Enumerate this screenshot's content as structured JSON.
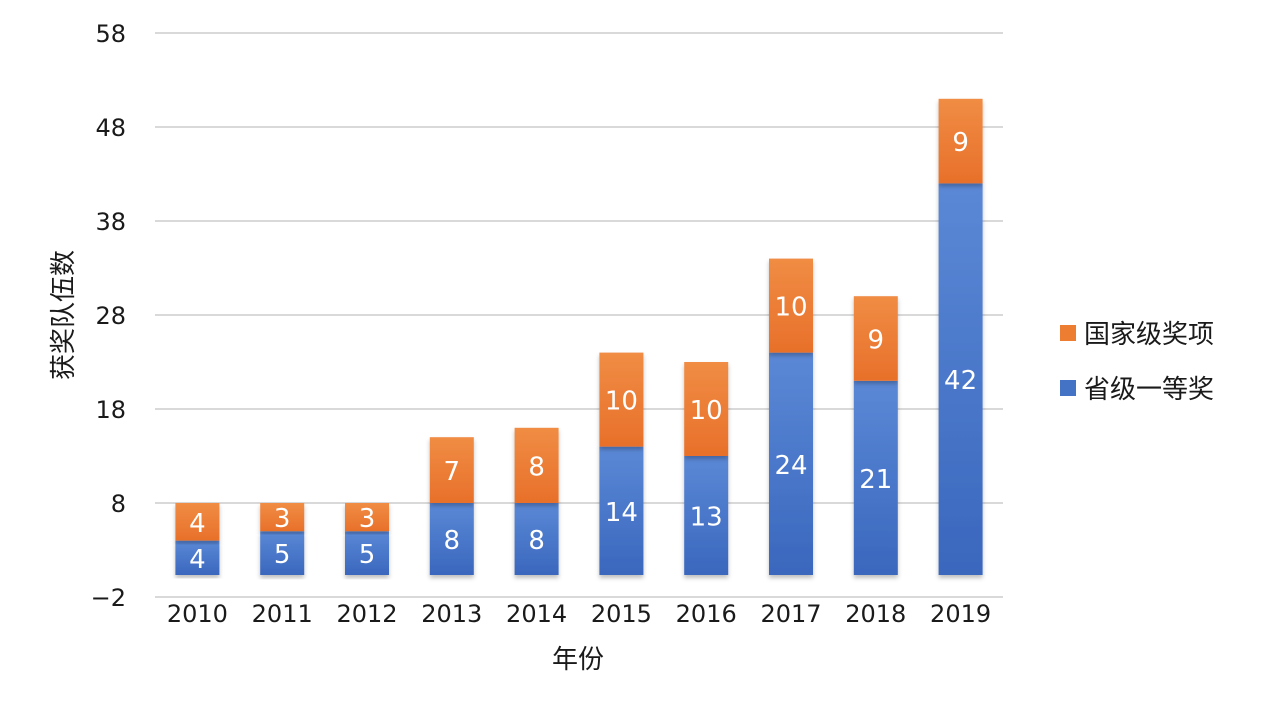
{
  "chart_data": {
    "type": "bar",
    "stacked": true,
    "title": "",
    "xlabel": "年份",
    "ylabel": "获奖队伍数",
    "categories": [
      "2010",
      "2011",
      "2012",
      "2013",
      "2014",
      "2015",
      "2016",
      "2017",
      "2018",
      "2019"
    ],
    "series": [
      {
        "name": "省级一等奖",
        "color": "#4472c4",
        "values": [
          4,
          5,
          5,
          8,
          8,
          14,
          13,
          24,
          21,
          42
        ]
      },
      {
        "name": "国家级奖项",
        "color": "#ed7d31",
        "values": [
          4,
          3,
          3,
          7,
          8,
          10,
          10,
          10,
          9,
          9
        ]
      }
    ],
    "ylim": [
      -2,
      58
    ],
    "yticks": [
      "−2",
      "8",
      "18",
      "28",
      "38",
      "48",
      "58"
    ],
    "ytick_values": [
      -2,
      8,
      18,
      28,
      38,
      48,
      58
    ],
    "grid": true,
    "legend_position": "right",
    "legend_order": [
      "国家级奖项",
      "省级一等奖"
    ]
  }
}
